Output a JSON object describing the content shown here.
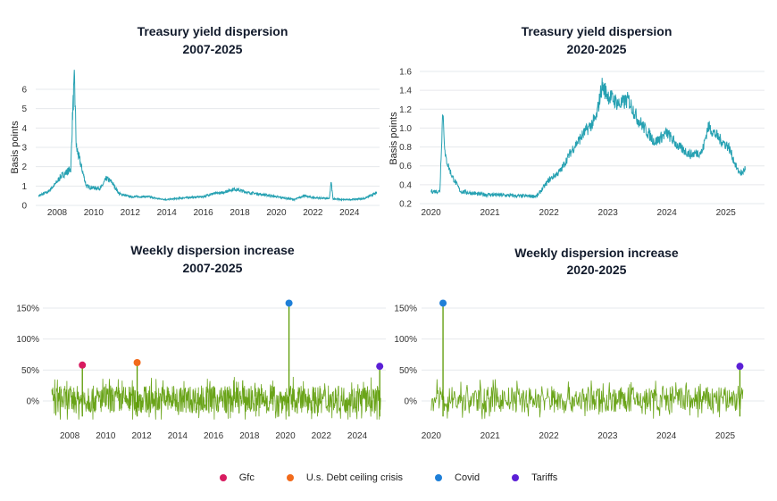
{
  "chart_data": [
    {
      "type": "line",
      "title": [
        "Treasury yield dispersion",
        "2007-2025"
      ],
      "ylabel": "Basis points",
      "xlim": [
        2007,
        2025.6
      ],
      "ylim": [
        0,
        6.5
      ],
      "yticks": [
        "0",
        "1",
        "2",
        "3",
        "4",
        "5",
        "6"
      ],
      "xticks": [
        "2008",
        "2010",
        "2012",
        "2014",
        "2016",
        "2018",
        "2020",
        "2022",
        "2024"
      ],
      "grid": true,
      "color": "#26a1b2",
      "series": [
        {
          "x": [
            2007.0,
            2007.5,
            2007.9,
            2008.2,
            2008.5,
            2008.75,
            2008.85,
            2008.95,
            2009.05,
            2009.3,
            2009.6,
            2010.0,
            2010.4,
            2010.7,
            2011.0,
            2011.4,
            2012,
            2013,
            2013.5,
            2014,
            2015,
            2016,
            2016.5,
            2017,
            2017.7,
            2018.5,
            2019,
            2020,
            2021,
            2021.5,
            2022,
            2022.9,
            2023.0,
            2023.1,
            2023.5,
            2024,
            2024.8,
            2025.5
          ],
          "y": [
            0.5,
            0.7,
            1.1,
            1.5,
            1.7,
            1.9,
            4.8,
            6.5,
            3.0,
            2.1,
            1.0,
            0.9,
            0.9,
            1.4,
            1.2,
            0.6,
            0.45,
            0.45,
            0.35,
            0.3,
            0.4,
            0.45,
            0.6,
            0.65,
            0.85,
            0.65,
            0.6,
            0.45,
            0.3,
            0.5,
            0.4,
            0.35,
            1.2,
            0.35,
            0.3,
            0.3,
            0.35,
            0.65
          ]
        }
      ]
    },
    {
      "type": "line",
      "title": [
        "Treasury yield dispersion",
        "2020-2025"
      ],
      "ylabel": "Basis points",
      "xlim": [
        2019.9,
        2025.6
      ],
      "ylim": [
        0.2,
        1.6
      ],
      "yticks": [
        "0.2",
        "0.4",
        "0.6",
        "0.8",
        "1.0",
        "1.2",
        "1.4",
        "1.6"
      ],
      "xticks": [
        "2020",
        "2021",
        "2022",
        "2023",
        "2024",
        "2025"
      ],
      "grid": true,
      "color": "#26a1b2",
      "series": [
        {
          "x": [
            2020.0,
            2020.15,
            2020.2,
            2020.24,
            2020.35,
            2020.5,
            2020.8,
            2021.2,
            2021.5,
            2021.8,
            2022.0,
            2022.2,
            2022.4,
            2022.6,
            2022.8,
            2022.9,
            2023.0,
            2023.2,
            2023.35,
            2023.5,
            2023.8,
            2024.0,
            2024.2,
            2024.4,
            2024.6,
            2024.7,
            2024.9,
            2025.05,
            2025.2,
            2025.28,
            2025.33
          ],
          "y": [
            0.33,
            0.33,
            1.2,
            0.7,
            0.5,
            0.33,
            0.3,
            0.29,
            0.28,
            0.28,
            0.45,
            0.55,
            0.78,
            0.95,
            1.1,
            1.45,
            1.35,
            1.25,
            1.3,
            1.1,
            0.85,
            0.95,
            0.8,
            0.72,
            0.75,
            1.02,
            0.88,
            0.8,
            0.55,
            0.52,
            0.58
          ]
        }
      ]
    },
    {
      "type": "line",
      "title": [
        "Weekly dispersion increase",
        "2007-2025"
      ],
      "xlim": [
        2007,
        2025.6
      ],
      "ylim": [
        -40,
        160
      ],
      "yticks": [
        "0%",
        "50%",
        "100%",
        "150%"
      ],
      "xticks": [
        "2008",
        "2010",
        "2012",
        "2014",
        "2016",
        "2018",
        "2020",
        "2022",
        "2024"
      ],
      "grid": true,
      "color": "#5a9a00",
      "noise_band_pct": [
        -30,
        40
      ],
      "events": [
        {
          "name": "Gfc",
          "x": 2008.7,
          "y": 58,
          "color": "#d81b60"
        },
        {
          "name": "U.s. Debt ceiling crisis",
          "x": 2011.75,
          "y": 62,
          "color": "#f26a1b"
        },
        {
          "name": "Covid",
          "x": 2020.2,
          "y": 158,
          "color": "#1e7fd8"
        },
        {
          "name": "Tariffs",
          "x": 2025.25,
          "y": 56,
          "color": "#5b1fd6"
        }
      ]
    },
    {
      "type": "line",
      "title": [
        "Weekly dispersion increase",
        "2020-2025"
      ],
      "xlim": [
        2019.9,
        2025.6
      ],
      "ylim": [
        -40,
        160
      ],
      "yticks": [
        "0%",
        "50%",
        "100%",
        "150%"
      ],
      "xticks": [
        "2020",
        "2021",
        "2022",
        "2023",
        "2024",
        "2025"
      ],
      "grid": true,
      "color": "#5a9a00",
      "noise_band_pct": [
        -30,
        35
      ],
      "events": [
        {
          "name": "Covid",
          "x": 2020.2,
          "y": 158,
          "color": "#1e7fd8"
        },
        {
          "name": "Tariffs",
          "x": 2025.25,
          "y": 56,
          "color": "#5b1fd6"
        }
      ]
    }
  ],
  "legend": [
    {
      "label": "Gfc",
      "color": "#d81b60"
    },
    {
      "label": "U.s. Debt ceiling crisis",
      "color": "#f26a1b"
    },
    {
      "label": "Covid",
      "color": "#1e7fd8"
    },
    {
      "label": "Tariffs",
      "color": "#5b1fd6"
    }
  ]
}
